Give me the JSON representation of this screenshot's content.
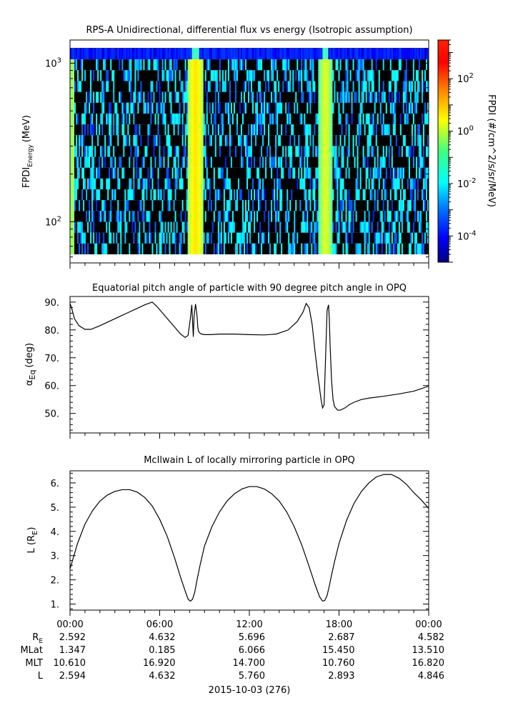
{
  "colors": {
    "background": "#ffffff",
    "axis": "#000000",
    "spectrogram_fill_low": "#000000",
    "colorbar_stops": [
      "#00007f",
      "#0000ff",
      "#007fff",
      "#00ffff",
      "#7fff7f",
      "#ffff00",
      "#ff7f00",
      "#ff0000",
      "#7f0000"
    ]
  },
  "chart_data": [
    {
      "type": "heatmap",
      "title": "RPS-A Unidirectional, differential flux vs energy (Isotropic assumption)",
      "ylabel_main": "FPDI",
      "ylabel_sub": "Energy",
      "ylabel_unit": "(MeV)",
      "yscale": "log",
      "ylim": [
        55,
        1400
      ],
      "yticks": [
        {
          "value": 100,
          "base": "10",
          "exp": "2"
        },
        {
          "value": 1000,
          "base": "10",
          "exp": "3"
        }
      ],
      "xlim": [
        0,
        24
      ],
      "energy_channels": 19,
      "colorbar": {
        "label": "FPDI (#/cm^2/s/sr/MeV)",
        "scale": "log",
        "range": [
          1e-05,
          3000
        ],
        "ticks": [
          {
            "value": 0.0001,
            "base": "10",
            "exp": "-4"
          },
          {
            "value": 0.01,
            "base": "10",
            "exp": "-2"
          },
          {
            "value": 1,
            "base": "10",
            "exp": "0"
          },
          {
            "value": 100,
            "base": "10",
            "exp": "2"
          }
        ]
      },
      "intensity_bands": [
        {
          "center_hours": 8.35,
          "half_width_hours": 0.55,
          "peak_flux": 3
        },
        {
          "center_hours": 17.05,
          "half_width_hours": 0.45,
          "peak_flux": 1
        }
      ],
      "edge_band": {
        "start_hours": 0.0,
        "end_hours": 0.2,
        "peak_flux": 0.3
      }
    },
    {
      "type": "line",
      "title": "Equatorial pitch angle of particle with 90 degree pitch angle in OPQ",
      "ylabel_main": "α",
      "ylabel_sub": "Eq",
      "ylabel_unit": "(deg)",
      "ylim": [
        43,
        92
      ],
      "xlim": [
        0,
        24
      ],
      "yticks": [
        {
          "value": 50,
          "label": "50."
        },
        {
          "value": 60,
          "label": "60."
        },
        {
          "value": 70,
          "label": "70."
        },
        {
          "value": 80,
          "label": "80."
        },
        {
          "value": 90,
          "label": "90."
        }
      ],
      "series": [
        {
          "x": [
            0,
            0.1,
            0.3,
            0.6,
            1,
            1.4,
            2,
            2.6,
            3.2,
            3.8,
            4.4,
            5,
            5.5,
            5.8,
            6.2,
            6.6,
            7,
            7.4,
            7.7,
            7.9,
            8.05,
            8.15,
            8.2,
            8.25,
            8.3,
            8.4,
            8.5,
            8.55,
            8.6,
            8.7,
            8.8,
            9,
            9.4,
            10,
            11,
            12,
            13,
            13.8,
            14.6,
            15.2,
            15.6,
            15.8,
            16,
            16.2,
            16.4,
            16.6,
            16.8,
            16.9,
            17,
            17.1,
            17.2,
            17.3,
            17.35,
            17.4,
            17.5,
            17.6,
            17.7,
            17.9,
            18.1,
            18.4,
            18.7,
            19,
            19.5,
            20,
            21,
            22,
            23,
            24
          ],
          "y": [
            89.5,
            88,
            84,
            81.5,
            80.2,
            80.2,
            81.5,
            83,
            84.5,
            86,
            87.5,
            89,
            90,
            88.5,
            86,
            83.5,
            81,
            78.5,
            77.3,
            78,
            84,
            89,
            83,
            77.5,
            85,
            89.3,
            85,
            81,
            79.5,
            78.8,
            78.5,
            78.3,
            78.3,
            78.5,
            78.5,
            78.3,
            78.2,
            78.5,
            80,
            83,
            86.5,
            89.5,
            88,
            82,
            72,
            63,
            55,
            52,
            53,
            70,
            87,
            89,
            84,
            75,
            62,
            55,
            52.5,
            51.2,
            51.2,
            52,
            53.2,
            54,
            55,
            55.5,
            56.2,
            57,
            58,
            59.8
          ]
        }
      ]
    },
    {
      "type": "line",
      "title": "McIlwain L of locally mirroring particle in OPQ",
      "ylabel_main": "L (R",
      "ylabel_sub": "E",
      "ylabel_unit": ")",
      "ylim": [
        0.75,
        6.5
      ],
      "xlim": [
        0,
        24
      ],
      "yticks": [
        {
          "value": 1,
          "label": "1."
        },
        {
          "value": 2,
          "label": "2."
        },
        {
          "value": 3,
          "label": "3."
        },
        {
          "value": 4,
          "label": "4."
        },
        {
          "value": 5,
          "label": "5."
        },
        {
          "value": 6,
          "label": "6."
        }
      ],
      "series": [
        {
          "x": [
            0,
            0.5,
            1,
            1.5,
            2,
            2.5,
            3,
            3.5,
            4,
            4.5,
            5,
            5.5,
            6,
            6.5,
            7,
            7.4,
            7.7,
            7.9,
            8.05,
            8.2,
            8.35,
            8.5,
            8.7,
            9,
            9.5,
            10,
            10.5,
            11,
            11.5,
            12,
            12.5,
            13,
            13.5,
            14,
            14.5,
            15,
            15.5,
            16,
            16.4,
            16.7,
            16.9,
            17.05,
            17.2,
            17.35,
            17.5,
            17.7,
            18,
            18.5,
            19,
            19.5,
            20,
            20.5,
            21,
            21.5,
            22,
            22.5,
            23,
            23.5,
            24
          ],
          "y": [
            2.45,
            3.5,
            4.3,
            4.85,
            5.25,
            5.5,
            5.65,
            5.72,
            5.72,
            5.62,
            5.4,
            5.05,
            4.5,
            3.8,
            2.9,
            2.1,
            1.55,
            1.2,
            1.12,
            1.2,
            1.5,
            2.0,
            2.6,
            3.4,
            4.2,
            4.8,
            5.25,
            5.55,
            5.75,
            5.85,
            5.85,
            5.75,
            5.55,
            5.25,
            4.8,
            4.2,
            3.45,
            2.55,
            1.8,
            1.3,
            1.12,
            1.15,
            1.35,
            1.75,
            2.2,
            2.75,
            3.5,
            4.45,
            5.15,
            5.65,
            6.0,
            6.25,
            6.35,
            6.35,
            6.2,
            5.95,
            5.6,
            5.3,
            4.95
          ]
        }
      ]
    }
  ],
  "time_axis": {
    "tick_labels": [
      "00:00",
      "06:00",
      "12:00",
      "18:00",
      "00:00"
    ],
    "date_label": "2015-10-03 (276)"
  },
  "ephemeris": {
    "rows": [
      {
        "label": "R",
        "label_sub": "E",
        "values": [
          "2.592",
          "4.632",
          "5.696",
          "2.687",
          "4.582"
        ]
      },
      {
        "label": "MLat",
        "label_sub": "",
        "values": [
          "1.347",
          "0.185",
          "6.066",
          "15.450",
          "13.510"
        ]
      },
      {
        "label": "MLT",
        "label_sub": "",
        "values": [
          "10.610",
          "16.920",
          "14.700",
          "10.760",
          "16.820"
        ]
      },
      {
        "label": "L",
        "label_sub": "",
        "values": [
          "2.594",
          "4.632",
          "5.760",
          "2.893",
          "4.846"
        ]
      }
    ]
  }
}
